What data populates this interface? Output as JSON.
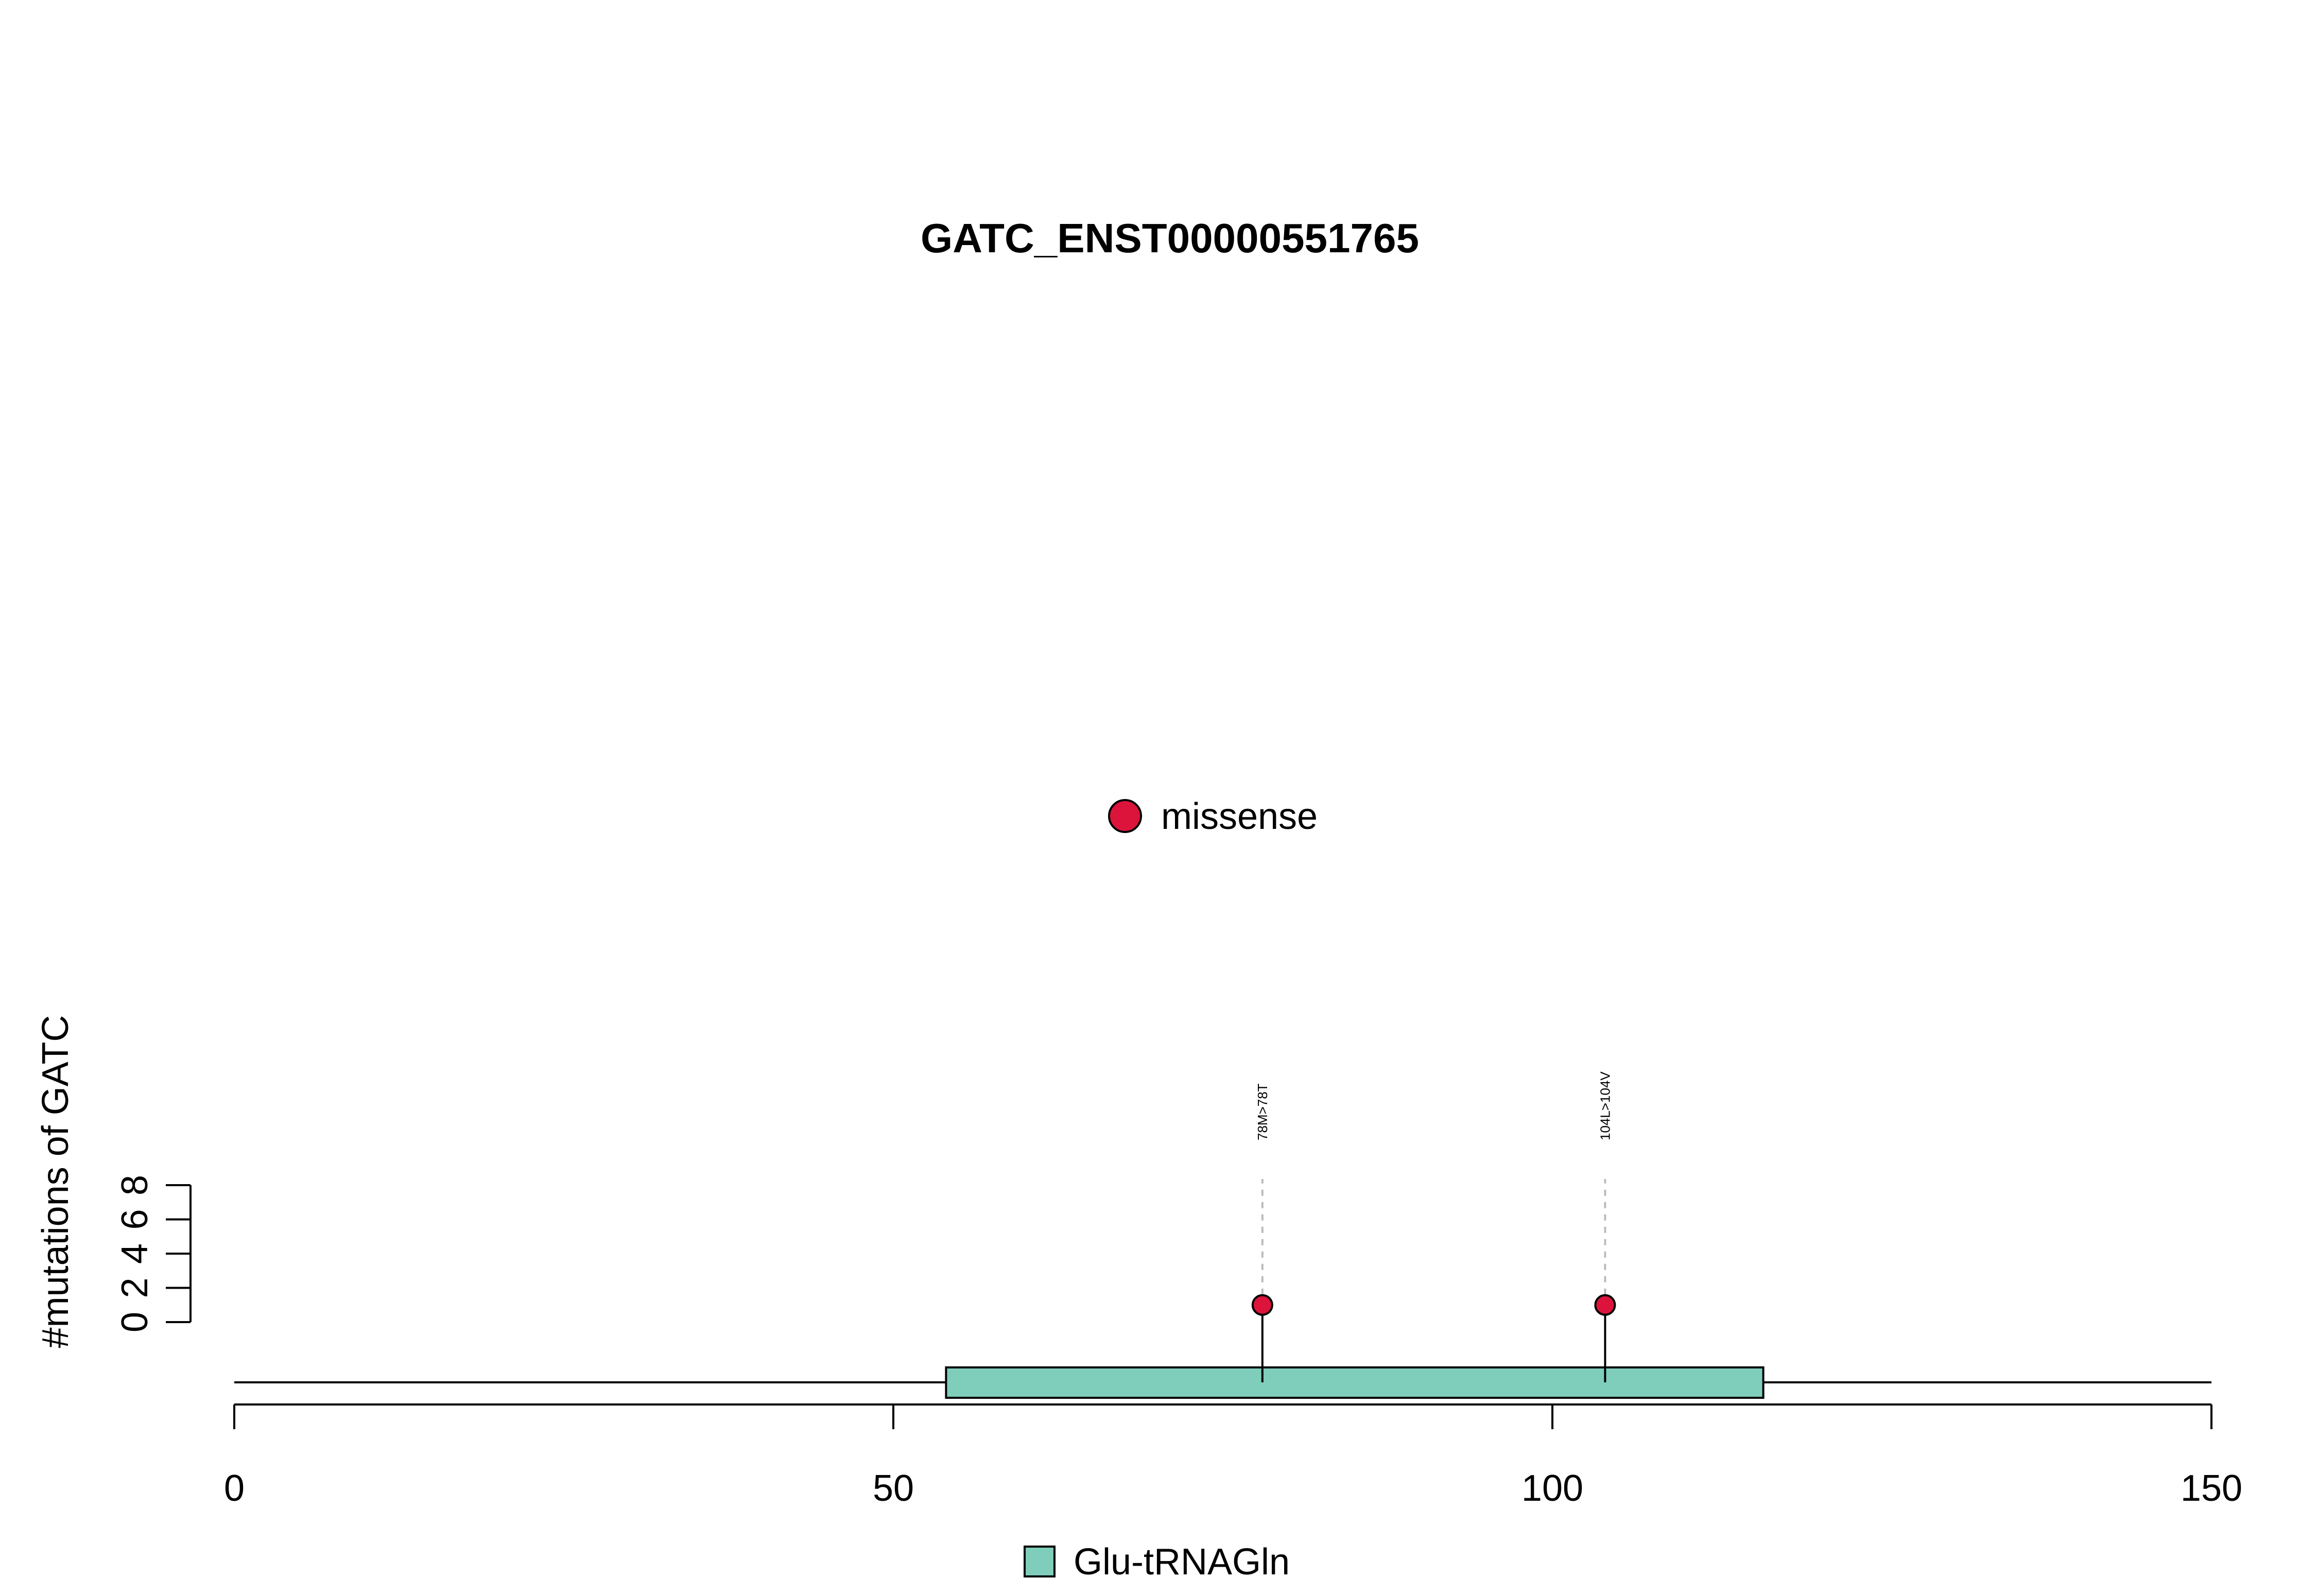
{
  "chart_data": {
    "type": "lollipop",
    "title": "GATC_ENST00000551765",
    "xlabel": "",
    "ylabel": "#mutations of GATC",
    "xlim": [
      0,
      150
    ],
    "ylim": [
      0,
      8
    ],
    "x_ticks": [
      0,
      50,
      100,
      150
    ],
    "y_ticks": [
      0,
      2,
      4,
      6,
      8
    ],
    "protein_length": 150,
    "mutations": [
      {
        "position": 78,
        "count": 1,
        "label": "78M>78T",
        "type": "missense"
      },
      {
        "position": 104,
        "count": 1,
        "label": "104L>104V",
        "type": "missense"
      }
    ],
    "domains": [
      {
        "name": "Glu-tRNAGln",
        "start": 54,
        "end": 116,
        "color": "#7fcdbb"
      }
    ],
    "mutation_legend": [
      {
        "label": "missense",
        "color": "#dc143c"
      }
    ],
    "domain_legend": [
      {
        "label": "Glu-tRNAGln",
        "color": "#7fcdbb"
      }
    ],
    "grid": false
  }
}
